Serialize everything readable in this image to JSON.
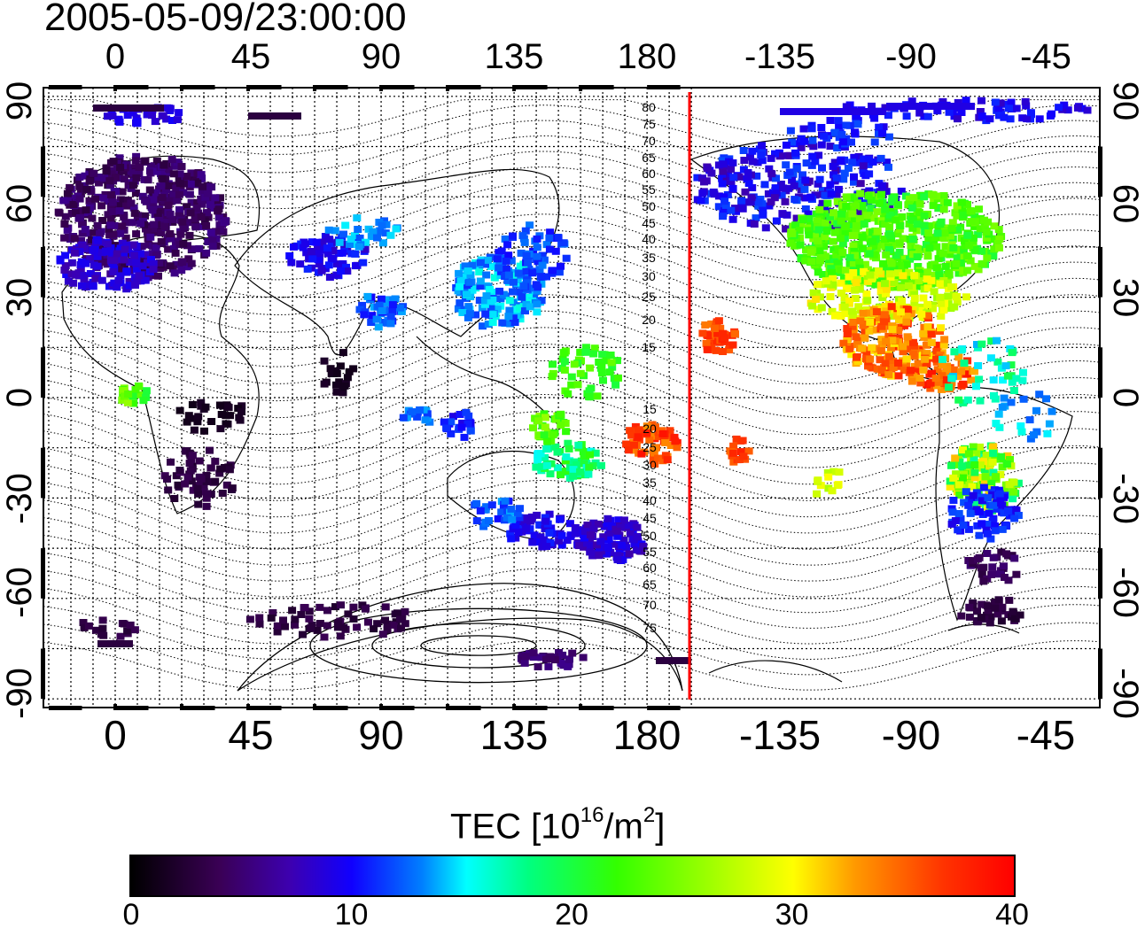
{
  "title": "2005-05-09/23:00:00",
  "map": {
    "lon_ticks": [
      "0",
      "45",
      "90",
      "135",
      "180",
      "-135",
      "-90",
      "-45"
    ],
    "lat_ticks": [
      "90",
      "60",
      "30",
      "0",
      "-30",
      "-60",
      "-90"
    ],
    "contour_labels_north": [
      "80",
      "75",
      "70",
      "65",
      "60",
      "55",
      "50",
      "45",
      "40",
      "35",
      "30",
      "25",
      "20",
      "15"
    ],
    "contour_labels_south": [
      "15",
      "20",
      "25",
      "30",
      "35",
      "40",
      "45",
      "50",
      "55",
      "60",
      "65",
      "70",
      "75"
    ],
    "marker_line_color": "#ff0000"
  },
  "colorbar": {
    "label_main": "TEC  [10",
    "label_exp": "16",
    "label_unit": "/m",
    "label_unit_exp": "2",
    "label_close": "]",
    "ticks": [
      "0",
      "10",
      "20",
      "30",
      "40"
    ],
    "range": [
      0,
      40
    ]
  }
}
